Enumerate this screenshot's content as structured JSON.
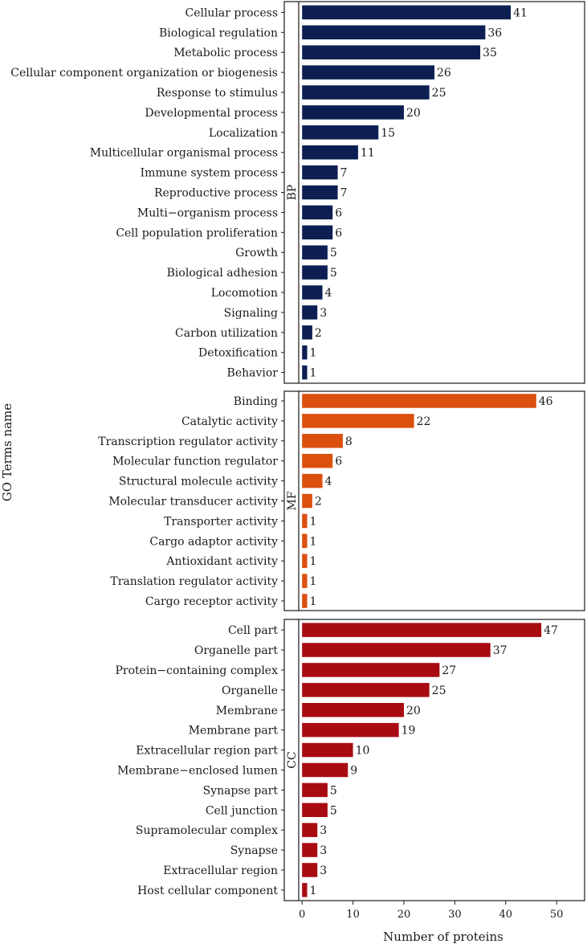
{
  "chart_data": {
    "type": "bar",
    "orientation": "horizontal",
    "ylabel": "GO Terms name",
    "xlabel": "Number of proteins",
    "xlim": [
      -3.5,
      55.5
    ],
    "xticks": [
      0,
      10,
      20,
      30,
      40,
      50
    ],
    "tick_labels": [
      "0",
      "10",
      "20",
      "30",
      "40",
      "50"
    ],
    "panels": [
      {
        "name": "BP",
        "color": "#0d1f52",
        "categories": [
          "Cellular process",
          "Biological regulation",
          "Metabolic process",
          "Cellular component organization or biogenesis",
          "Response to stimulus",
          "Developmental process",
          "Localization",
          "Multicellular organismal process",
          "Immune system process",
          "Reproductive process",
          "Multi−organism process",
          "Cell population proliferation",
          "Growth",
          "Biological adhesion",
          "Locomotion",
          "Signaling",
          "Carbon utilization",
          "Detoxification",
          "Behavior"
        ],
        "values": [
          41,
          36,
          35,
          26,
          25,
          20,
          15,
          11,
          7,
          7,
          6,
          6,
          5,
          5,
          4,
          3,
          2,
          1,
          1
        ]
      },
      {
        "name": "MF",
        "color": "#db4f0f",
        "categories": [
          "Binding",
          "Catalytic activity",
          "Transcription regulator activity",
          "Molecular function regulator",
          "Structural molecule activity",
          "Molecular transducer activity",
          "Transporter activity",
          "Cargo adaptor activity",
          "Antioxidant activity",
          "Translation regulator activity",
          "Cargo receptor activity"
        ],
        "values": [
          46,
          22,
          8,
          6,
          4,
          2,
          1,
          1,
          1,
          1,
          1
        ]
      },
      {
        "name": "CC",
        "color": "#a80b12",
        "categories": [
          "Cell part",
          "Organelle part",
          "Protein−containing complex",
          "Organelle",
          "Membrane",
          "Membrane part",
          "Extracellular region part",
          "Membrane−enclosed lumen",
          "Synapse part",
          "Cell junction",
          "Supramolecular complex",
          "Synapse",
          "Extracellular region",
          "Host cellular component"
        ],
        "values": [
          47,
          37,
          27,
          25,
          20,
          19,
          10,
          9,
          5,
          5,
          3,
          3,
          3,
          1
        ]
      }
    ]
  }
}
